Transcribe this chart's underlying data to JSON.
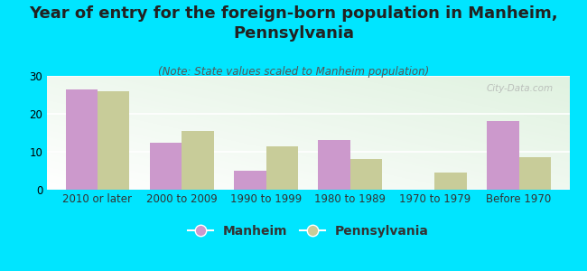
{
  "title": "Year of entry for the foreign-born population in Manheim,\nPennsylvania",
  "subtitle": "(Note: State values scaled to Manheim population)",
  "categories": [
    "2010 or later",
    "2000 to 2009",
    "1990 to 1999",
    "1980 to 1989",
    "1970 to 1979",
    "Before 1970"
  ],
  "manheim_values": [
    26.5,
    12.5,
    5.0,
    13.0,
    0,
    18.0
  ],
  "pennsylvania_values": [
    26.0,
    15.5,
    11.5,
    8.0,
    4.5,
    8.5
  ],
  "manheim_color": "#cc99cc",
  "pennsylvania_color": "#c8cc99",
  "background_color": "#00e5ff",
  "ylim": [
    0,
    30
  ],
  "yticks": [
    0,
    10,
    20,
    30
  ],
  "bar_width": 0.38,
  "title_fontsize": 13,
  "subtitle_fontsize": 8.5,
  "legend_fontsize": 10,
  "axis_label_fontsize": 8.5,
  "watermark": "City-Data.com"
}
